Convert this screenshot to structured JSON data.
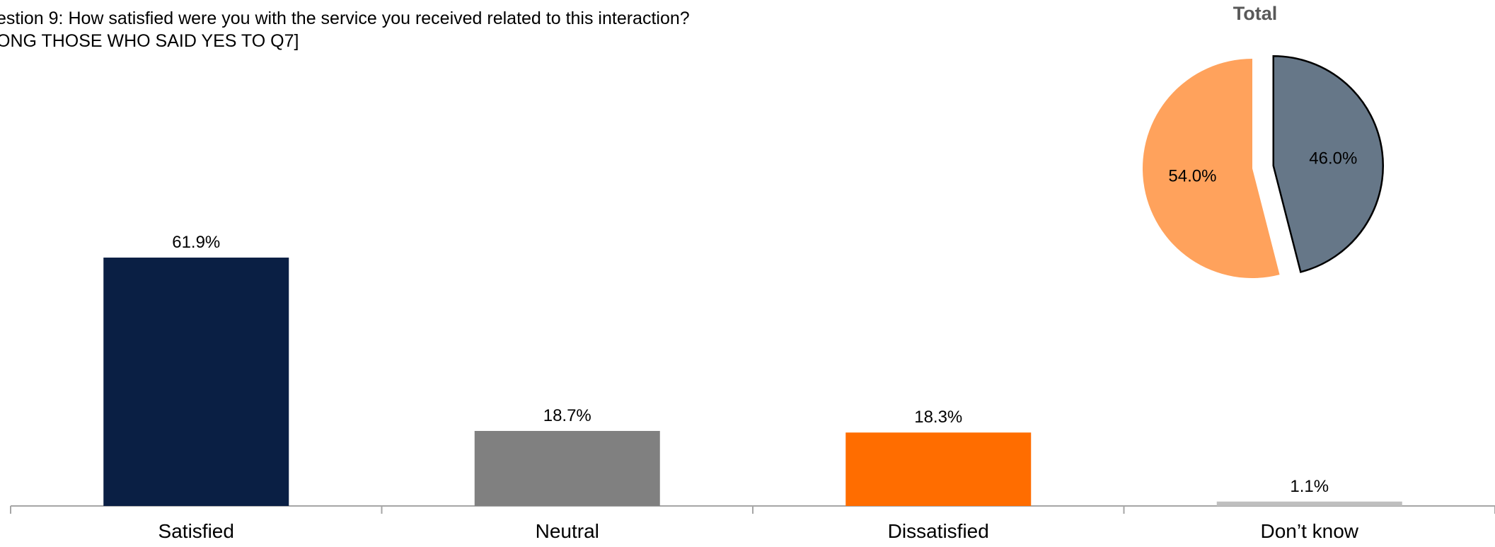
{
  "question": {
    "line1": "estion 9:     How satisfied were you with the service you received related to this interaction?",
    "line2": "ONG THOSE WHO SAID YES TO Q7]"
  },
  "chart_data": [
    {
      "type": "bar",
      "categories": [
        "Satisfied",
        "Neutral",
        "Dissatisfied",
        "Don’t know"
      ],
      "values": [
        61.9,
        18.7,
        18.3,
        1.1
      ],
      "value_labels": [
        "61.9%",
        "18.7%",
        "18.3%",
        "1.1%"
      ],
      "colors": [
        "#0a1f44",
        "#808080",
        "#ff6d00",
        "#bfbfbf"
      ],
      "ylim": [
        0,
        100
      ],
      "grid": false,
      "legend": "none"
    },
    {
      "type": "pie",
      "title": "Total",
      "slices": [
        {
          "value": 46.0,
          "label": "46.0%",
          "color": "#667788",
          "exploded": true
        },
        {
          "value": 54.0,
          "label": "54.0%",
          "color": "#ffa25c",
          "exploded": false
        }
      ],
      "legend": "none"
    }
  ]
}
